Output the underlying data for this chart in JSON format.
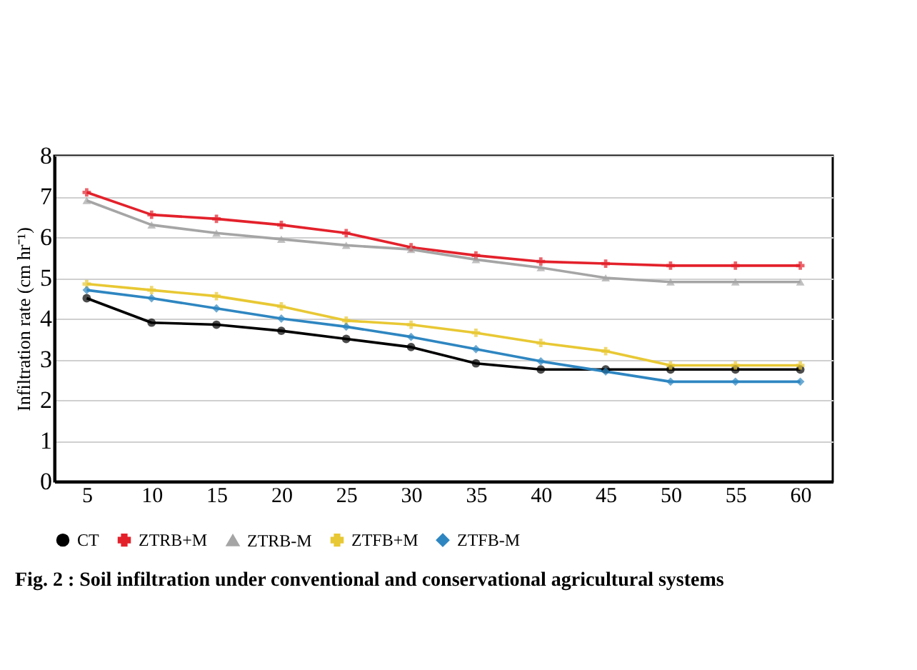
{
  "chart_data": {
    "type": "line",
    "ylabel": "Infiltration rate (cm hr⁻¹)",
    "categories": [
      "5",
      "10",
      "15",
      "20",
      "25",
      "30",
      "35",
      "40",
      "45",
      "50",
      "55",
      "60"
    ],
    "series": [
      {
        "name": "CT",
        "color": "#000000",
        "marker": "circle",
        "values": [
          4.5,
          3.9,
          3.85,
          3.7,
          3.5,
          3.3,
          2.9,
          2.75,
          2.75,
          2.75,
          2.75,
          2.75
        ]
      },
      {
        "name": "ZTRB+M",
        "color": "#e3212b",
        "marker": "cross",
        "values": [
          7.1,
          6.55,
          6.45,
          6.3,
          6.1,
          5.75,
          5.55,
          5.4,
          5.35,
          5.3,
          5.3,
          5.3
        ]
      },
      {
        "name": "ZTRB-M",
        "color": "#a5a5a5",
        "marker": "triangle",
        "values": [
          6.9,
          6.3,
          6.1,
          5.95,
          5.8,
          5.7,
          5.45,
          5.25,
          5.0,
          4.9,
          4.9,
          4.9
        ]
      },
      {
        "name": "ZTFB+M",
        "color": "#e8c834",
        "marker": "cross",
        "values": [
          4.85,
          4.7,
          4.55,
          4.3,
          3.95,
          3.85,
          3.65,
          3.4,
          3.2,
          2.85,
          2.85,
          2.85
        ]
      },
      {
        "name": "ZTFB-M",
        "color": "#2e86c1",
        "marker": "diamond",
        "values": [
          4.7,
          4.5,
          4.25,
          4.0,
          3.8,
          3.55,
          3.25,
          2.95,
          2.7,
          2.45,
          2.45,
          2.45
        ]
      }
    ],
    "ylim": [
      0,
      8
    ],
    "yticks": [
      0,
      1,
      2,
      3,
      4,
      5,
      6,
      7,
      8
    ],
    "grid": "y",
    "legend": "bottom",
    "annotations": [
      "Fig. 2 :   Soil infiltration under conventional and conservational agricultural systems"
    ]
  }
}
